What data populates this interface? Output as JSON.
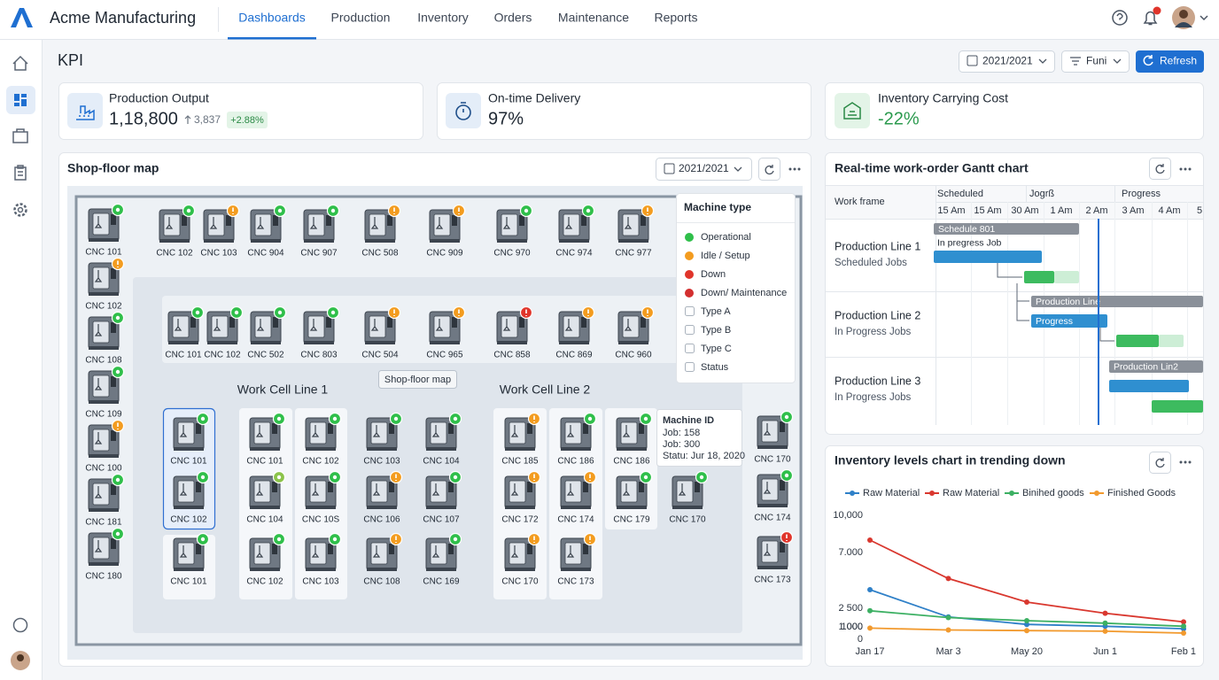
{
  "header": {
    "brand": "Acme Manufacturing",
    "nav": [
      "Dashboards",
      "Production",
      "Inventory",
      "Orders",
      "Maintenance",
      "Reports"
    ],
    "active_nav": 0
  },
  "page": {
    "title": "KPI",
    "date_filter": "2021/2021",
    "filter": "Funi",
    "refresh": "Refresh"
  },
  "kpis": [
    {
      "title": "Production Output",
      "value": "1,18,800",
      "delta": "3,837",
      "badge": "+2.88%"
    },
    {
      "title": "On-time Delivery",
      "value": "97%"
    },
    {
      "title": "Inventory Carrying Cost",
      "value": "-22%"
    }
  ],
  "shopfloor": {
    "title": "Shop-floor map",
    "date_filter": "2021/2021",
    "zones": [
      "Work Cell Line 1",
      "Work Cell Line 2"
    ],
    "chip": "Shop-floor map",
    "groups": [
      {
        "machines": [
          {
            "label": "CNC 101",
            "color": "#2fbf4a"
          },
          {
            "label": "CNC 102",
            "color": "#f39c1f"
          },
          {
            "label": "CNC 108",
            "color": "#2fbf4a"
          },
          {
            "label": "CNC 109",
            "color": "#2fbf4a"
          },
          {
            "label": "CNC 100",
            "color": "#f39c1f"
          },
          {
            "label": "CNC 181",
            "color": "#2fbf4a"
          },
          {
            "label": "CNC 180",
            "color": "#2fbf4a"
          }
        ]
      },
      {
        "machines": [
          {
            "label": "CNC 102",
            "color": "#2fbf4a"
          },
          {
            "label": "CNC 103",
            "color": "#f39c1f"
          },
          {
            "label": "CNC 904",
            "color": "#2fbf4a"
          },
          {
            "label": "CNC 907",
            "color": "#2fbf4a"
          },
          {
            "label": "CNC 508",
            "color": "#f39c1f"
          },
          {
            "label": "CNC 909",
            "color": "#f39c1f"
          },
          {
            "label": "CNC 970",
            "color": "#2fbf4a"
          },
          {
            "label": "CNC 974",
            "color": "#2fbf4a"
          },
          {
            "label": "CNC 977",
            "color": "#f39c1f"
          }
        ]
      },
      {
        "machines": [
          {
            "label": "CNC 101",
            "color": "#2fbf4a"
          },
          {
            "label": "CNC 102",
            "color": "#2fbf4a"
          },
          {
            "label": "CNC 502",
            "color": "#2fbf4a"
          },
          {
            "label": "CNC 803",
            "color": "#2fbf4a"
          },
          {
            "label": "CNC 504",
            "color": "#f39c1f"
          },
          {
            "label": "CNC 965",
            "color": "#f39c1f"
          },
          {
            "label": "CNC 858",
            "color": "#e0352b"
          },
          {
            "label": "CNC 869",
            "color": "#f39c1f"
          },
          {
            "label": "CNC 960",
            "color": "#f39c1f"
          }
        ]
      },
      {
        "machines": [
          {
            "label": "CNC 101",
            "color": "#2fbf4a"
          },
          {
            "label": "CNC 101",
            "color": "#2fbf4a"
          },
          {
            "label": "CNC 102",
            "color": "#2fbf4a"
          },
          {
            "label": "CNC 103",
            "color": "#2fbf4a"
          },
          {
            "label": "CNC 104",
            "color": "#2fbf4a"
          },
          {
            "label": "CNC 102",
            "color": "#2fbf4a"
          },
          {
            "label": "CNC 104",
            "color": "#8bc34a"
          },
          {
            "label": "CNC 10S",
            "color": "#2fbf4a"
          },
          {
            "label": "CNC 106",
            "color": "#f39c1f"
          },
          {
            "label": "CNC 107",
            "color": "#2fbf4a"
          },
          {
            "label": "CNC 101",
            "color": "#2fbf4a"
          },
          {
            "label": "CNC 102",
            "color": "#2fbf4a"
          },
          {
            "label": "CNC 103",
            "color": "#2fbf4a"
          },
          {
            "label": "CNC 108",
            "color": "#f39c1f"
          },
          {
            "label": "CNC 169",
            "color": "#2fbf4a"
          }
        ]
      },
      {
        "machines": [
          {
            "label": "CNC 185",
            "color": "#f39c1f"
          },
          {
            "label": "CNC 186",
            "color": "#2fbf4a"
          },
          {
            "label": "CNC 186",
            "color": "#2fbf4a"
          },
          {
            "label": "CNC 172",
            "color": "#f39c1f"
          },
          {
            "label": "CNC 174",
            "color": "#f39c1f"
          },
          {
            "label": "CNC 179",
            "color": "#2fbf4a"
          },
          {
            "label": "CNC 170",
            "color": "#2fbf4a"
          },
          {
            "label": "CNC 170",
            "color": "#f39c1f"
          },
          {
            "label": "CNC 173",
            "color": "#f39c1f"
          }
        ]
      },
      {
        "machines": [
          {
            "label": "CNC 170",
            "color": "#2fbf4a"
          },
          {
            "label": "CNC 174",
            "color": "#2fbf4a"
          },
          {
            "label": "CNC 173",
            "color": "#e0352b"
          }
        ]
      }
    ],
    "legend": {
      "title": "Machine type",
      "statuses": [
        {
          "label": "Operational",
          "color": "#2fbf4a"
        },
        {
          "label": "Idle / Setup",
          "color": "#f39c1f"
        },
        {
          "label": "Down",
          "color": "#e0352b"
        },
        {
          "label": "Down/ Maintenance",
          "color": "#d32f2f"
        }
      ],
      "types": [
        "Type A",
        "Type B",
        "Type C",
        "Status"
      ]
    },
    "tooltip": {
      "title": "Machine ID",
      "lines": [
        "Job: 158",
        "Job: 300",
        "Statu: Jur 18, 2020"
      ]
    }
  },
  "gantt": {
    "title": "Real-time work-order Gantt chart",
    "frame_label": "Work frame",
    "phases": [
      "Scheduled",
      "Jogrß",
      "Progress"
    ],
    "times": [
      "15 Am",
      "15 Am",
      "30 Am",
      "1 Am",
      "2 Am",
      "3 Am",
      "4 Am",
      "5"
    ],
    "rows": [
      {
        "name": "Production Line 1",
        "sub": "Scheduled Jobs"
      },
      {
        "name": "Production Line 2",
        "sub": "In Progress Jobs"
      },
      {
        "name": "Production Line 3",
        "sub": "In Progress Jobs"
      }
    ],
    "bar_labels": [
      "Schedule 801",
      "In pregress Job",
      "Production Line",
      "Progress",
      "Production Lin2"
    ]
  },
  "chart_data": {
    "type": "line",
    "title": "Inventory levels chart in trending down",
    "categories": [
      "Jan 17",
      "Mar 3",
      "May 20",
      "Jun 1",
      "Feb 1"
    ],
    "series": [
      {
        "name": "Raw Material",
        "color": "#2f80c8",
        "values": [
          4000,
          1800,
          1200,
          1050,
          850
        ]
      },
      {
        "name": "Raw Material",
        "color": "#d9382f",
        "values": [
          8000,
          4900,
          3000,
          2100,
          1400
        ]
      },
      {
        "name": "Binihed goods",
        "color": "#3cb063",
        "values": [
          2300,
          1750,
          1500,
          1300,
          1050
        ]
      },
      {
        "name": "Finished Goods",
        "color": "#f29a2e",
        "values": [
          900,
          750,
          700,
          650,
          500
        ]
      }
    ],
    "ylim": [
      0,
      10000
    ],
    "yticks": [
      {
        "value": 10000,
        "label": "10,000"
      },
      {
        "value": 7000,
        "label": "7.000"
      },
      {
        "value": 2500,
        "label": "2 500"
      },
      {
        "value": 1000,
        "label": "1 000"
      },
      1000,
      0
    ],
    "grid": false,
    "legend": "top"
  }
}
